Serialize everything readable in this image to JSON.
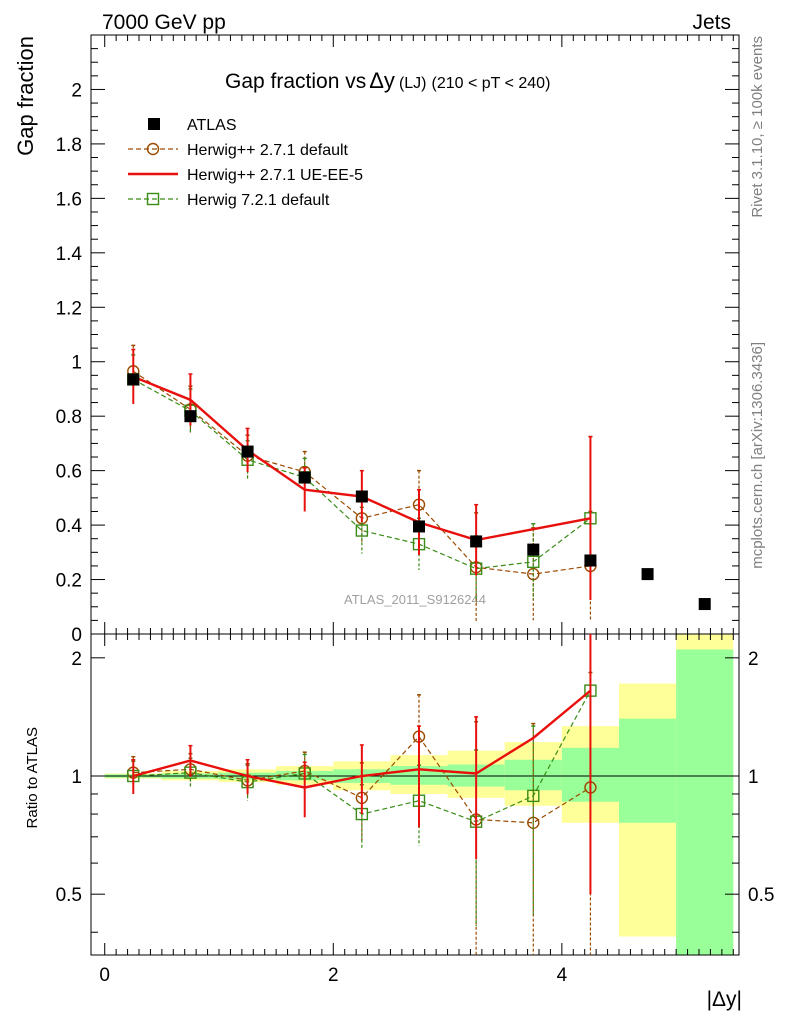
{
  "header": {
    "left": "7000 GeV pp",
    "right": "Jets"
  },
  "side_labels": {
    "rivet": "Rivet 3.1.10, ≥ 100k events",
    "mcplots": "mcplots.cern.ch [arXiv:1306.3436]"
  },
  "chart_data": [
    {
      "type": "scatter",
      "title": "Gap fraction vs",
      "title_symbol": "Δy",
      "title_suffix": "(LJ)",
      "title_range": "(210 < pT < 240)",
      "ylabel": "Gap fraction",
      "watermark": "ATLAS_2011_S9126244",
      "xlim": [
        -0.12,
        5.55
      ],
      "ylim": [
        0,
        2.2
      ],
      "yticks": [
        "0",
        "0.2",
        "0.4",
        "0.6",
        "0.8",
        "1",
        "1.2",
        "1.4",
        "1.6",
        "1.8",
        "2"
      ],
      "legend_position": "top-left",
      "series": [
        {
          "name": "ATLAS",
          "style": "square-marker",
          "color": "#000000",
          "x": [
            0.25,
            0.75,
            1.25,
            1.75,
            2.25,
            2.75,
            3.25,
            3.75,
            4.25,
            4.75,
            5.25
          ],
          "y": [
            0.935,
            0.8,
            0.67,
            0.575,
            0.505,
            0.395,
            0.34,
            0.31,
            0.27,
            0.22,
            0.11
          ]
        },
        {
          "name": "Herwig++ 2.7.1 default",
          "style": "dashed-circle",
          "color": "#9a4a00",
          "x": [
            0.25,
            0.75,
            1.25,
            1.75,
            2.25,
            2.75,
            3.25,
            3.75,
            4.25
          ],
          "y": [
            0.965,
            0.825,
            0.655,
            0.595,
            0.425,
            0.475,
            0.245,
            0.22,
            0.25
          ],
          "err": [
            0.095,
            0.085,
            0.075,
            0.075,
            0.09,
            0.125,
            0.2,
            0.17,
            0.2
          ]
        },
        {
          "name": "Herwig++ 2.7.1 UE-EE-5",
          "style": "solid-line",
          "color": "#e8100c",
          "x": [
            0.25,
            0.75,
            1.25,
            1.75,
            2.25,
            2.75,
            3.25,
            3.75,
            4.25
          ],
          "y": [
            0.945,
            0.86,
            0.675,
            0.53,
            0.505,
            0.41,
            0.345,
            0.385,
            0.425
          ],
          "err": [
            0.1,
            0.095,
            0.08,
            0.08,
            0.095,
            0.12,
            0.13,
            0.0,
            0.3
          ]
        },
        {
          "name": "Herwig 7.2.1 default",
          "style": "dashed-open-square",
          "color": "#3a8c16",
          "x": [
            0.25,
            0.75,
            1.25,
            1.75,
            2.25,
            2.75,
            3.25,
            3.75,
            4.25
          ],
          "y": [
            0.935,
            0.82,
            0.64,
            0.575,
            0.38,
            0.33,
            0.24,
            0.265,
            0.425
          ],
          "err": [
            0.09,
            0.08,
            0.07,
            0.07,
            0.085,
            0.095,
            0.12,
            0.14,
            0.3
          ]
        }
      ]
    },
    {
      "type": "scatter",
      "ylabel": "Ratio to ATLAS",
      "xlabel": "|Δy|",
      "xlim": [
        -0.12,
        5.55
      ],
      "ylim": [
        0.35,
        2.3
      ],
      "log_y": true,
      "yticks": [
        "0.5",
        "1",
        "2"
      ],
      "xticks": [
        "0",
        "2",
        "4"
      ],
      "reference_line": 1,
      "bands": {
        "x_edges": [
          0,
          0.5,
          1.0,
          1.5,
          2.0,
          2.5,
          3.0,
          3.5,
          4.0,
          4.5,
          5.0,
          5.5
        ],
        "stat_lo": [
          0.99,
          0.985,
          0.98,
          0.975,
          0.96,
          0.95,
          0.94,
          0.92,
          0.86,
          0.76,
          0.3
        ],
        "stat_hi": [
          1.01,
          1.015,
          1.02,
          1.03,
          1.04,
          1.06,
          1.07,
          1.1,
          1.18,
          1.4,
          2.1
        ],
        "total_lo": [
          0.985,
          0.975,
          0.965,
          0.95,
          0.92,
          0.9,
          0.88,
          0.84,
          0.76,
          0.39,
          0.3
        ],
        "total_hi": [
          1.015,
          1.03,
          1.04,
          1.06,
          1.09,
          1.13,
          1.16,
          1.22,
          1.34,
          1.72,
          2.4
        ]
      },
      "series": [
        {
          "name": "Herwig++ 2.7.1 default",
          "style": "dashed-circle",
          "color": "#9a4a00",
          "x": [
            0.25,
            0.75,
            1.25,
            1.75,
            2.25,
            2.75,
            3.25,
            3.75,
            4.25
          ],
          "y": [
            1.02,
            1.04,
            0.975,
            1.03,
            0.88,
            1.26,
            0.775,
            0.76,
            0.935
          ],
          "err_lo": [
            0.1,
            0.1,
            0.1,
            0.12,
            0.2,
            0.4,
            0.44,
            0.45,
            0.6
          ],
          "err_hi": [
            0.1,
            0.1,
            0.1,
            0.12,
            0.2,
            0.35,
            0.6,
            0.6,
            0.9
          ]
        },
        {
          "name": "Herwig++ 2.7.1 UE-EE-5",
          "style": "solid-line",
          "color": "#e8100c",
          "x": [
            0.25,
            0.75,
            1.25,
            1.75,
            2.25,
            2.75,
            3.25,
            3.75,
            4.25
          ],
          "y": [
            1.0,
            1.095,
            1.0,
            0.935,
            1.0,
            1.04,
            1.015,
            1.25,
            1.65
          ],
          "err_lo": [
            0.1,
            0.1,
            0.1,
            0.15,
            0.2,
            0.3,
            0.4,
            0.0,
            1.15
          ],
          "err_hi": [
            0.1,
            0.1,
            0.1,
            0.15,
            0.2,
            0.3,
            0.4,
            0.0,
            1.2
          ]
        },
        {
          "name": "Herwig 7.2.1 default",
          "style": "dashed-open-square",
          "color": "#3a8c16",
          "x": [
            0.25,
            0.75,
            1.25,
            1.75,
            2.25,
            2.75,
            3.25,
            3.75,
            4.25
          ],
          "y": [
            1.0,
            1.02,
            0.965,
            1.015,
            0.8,
            0.865,
            0.765,
            0.89,
            1.65
          ],
          "err_lo": [
            0.09,
            0.09,
            0.1,
            0.12,
            0.15,
            0.2,
            0.35,
            0.45,
            1.15
          ],
          "err_hi": [
            0.09,
            0.09,
            0.1,
            0.12,
            0.15,
            0.2,
            0.4,
            0.45,
            1.2
          ]
        }
      ]
    }
  ]
}
